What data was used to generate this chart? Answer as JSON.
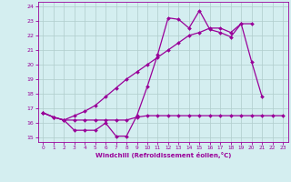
{
  "x": [
    0,
    1,
    2,
    3,
    4,
    5,
    6,
    7,
    8,
    9,
    10,
    11,
    12,
    13,
    14,
    15,
    16,
    17,
    18,
    19,
    20,
    21,
    22,
    23
  ],
  "line1": [
    16.7,
    16.4,
    16.2,
    15.5,
    15.5,
    15.5,
    16.0,
    15.1,
    15.1,
    16.5,
    18.5,
    20.7,
    23.2,
    23.1,
    22.5,
    23.7,
    22.4,
    22.2,
    21.9,
    22.8,
    20.2,
    17.8,
    null,
    null
  ],
  "line3": [
    16.7,
    16.4,
    16.2,
    16.5,
    16.8,
    17.2,
    17.8,
    18.4,
    19.0,
    19.5,
    20.0,
    20.5,
    21.0,
    21.5,
    22.0,
    22.2,
    22.5,
    22.5,
    22.2,
    22.8,
    22.8,
    null,
    null,
    null
  ],
  "line4": [
    16.7,
    16.4,
    16.2,
    16.2,
    16.2,
    16.2,
    16.2,
    16.2,
    16.2,
    16.4,
    16.5,
    16.5,
    16.5,
    16.5,
    16.5,
    16.5,
    16.5,
    16.5,
    16.5,
    16.5,
    16.5,
    16.5,
    16.5,
    16.5
  ],
  "color": "#990099",
  "bg_color": "#d4eef0",
  "grid_color": "#b0cccc",
  "xlabel": "Windchill (Refroidissement éolien,°C)",
  "ylim": [
    14.7,
    24.3
  ],
  "xlim": [
    -0.5,
    23.5
  ],
  "yticks": [
    15,
    16,
    17,
    18,
    19,
    20,
    21,
    22,
    23,
    24
  ],
  "xticks": [
    0,
    1,
    2,
    3,
    4,
    5,
    6,
    7,
    8,
    9,
    10,
    11,
    12,
    13,
    14,
    15,
    16,
    17,
    18,
    19,
    20,
    21,
    22,
    23
  ]
}
